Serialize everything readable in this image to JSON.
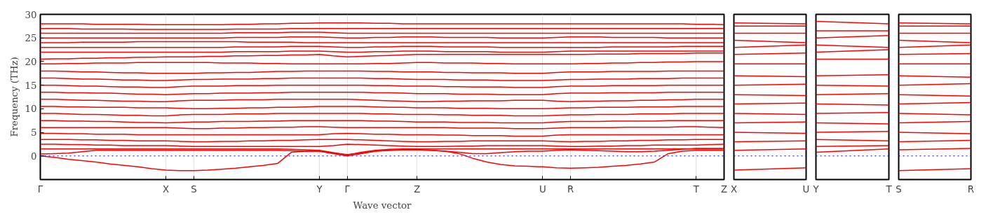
{
  "chart_data": [
    {
      "type": "line",
      "ylabel": "Frequency (THz)",
      "xlabel": "Wave vector",
      "ylim": [
        -5,
        30
      ],
      "yticks": [
        0,
        5,
        10,
        15,
        20,
        25,
        30
      ],
      "grid": "x",
      "categories": [
        "Γ",
        null,
        null,
        null,
        null,
        null,
        null,
        null,
        null,
        "X",
        null,
        "S",
        null,
        null,
        null,
        null,
        null,
        null,
        null,
        null,
        "Y",
        null,
        "Γ",
        null,
        null,
        null,
        null,
        "Z",
        null,
        null,
        null,
        null,
        null,
        null,
        null,
        null,
        "U",
        null,
        "R",
        null,
        null,
        null,
        null,
        null,
        null,
        null,
        null,
        "T",
        null,
        "Z"
      ],
      "ref_lines": [
        {
          "axis": "y",
          "value": 0,
          "color": "#0000ff",
          "line_style": "dotted"
        }
      ],
      "series": [
        {
          "color": "#ff0000",
          "values": [
            0,
            -0.3,
            -0.7,
            -1.0,
            -1.3,
            -1.7,
            -2.0,
            -2.3,
            -2.7,
            -3.0,
            -3.1,
            -3.1,
            -3.0,
            -2.8,
            -2.6,
            -2.3,
            -2.0,
            -1.6,
            0.8,
            1.0,
            1.0,
            0.5,
            0,
            0.5,
            1.0,
            1.2,
            1.3,
            1.3,
            1.2,
            1.0,
            0.5,
            -0.5,
            -1.3,
            -1.8,
            -2.1,
            -2.2,
            -2.3,
            -2.5,
            -2.6,
            -2.5,
            -2.4,
            -2.2,
            -2.0,
            -1.7,
            -1.3,
            0.5,
            1.0,
            1.2,
            1.2,
            1.2
          ]
        },
        {
          "color": "#ff0000",
          "values": [
            0.4,
            0.5,
            0.6,
            0.9,
            1.2,
            1.2,
            1.2,
            1.2,
            1.2,
            1.2,
            1.2,
            1.2,
            1.2,
            1.2,
            1.2,
            1.2,
            1.2,
            1.2,
            1.1,
            1.0,
            1.0,
            0.6,
            0.3,
            0.6,
            1.0,
            1.2,
            1.3,
            1.3,
            1.2,
            1.0,
            0.8,
            0.5,
            0.5,
            0.7,
            0.9,
            1.0,
            1.0,
            1.2,
            1.3,
            1.2,
            1.1,
            1.0,
            0.9,
            0.9,
            1.0,
            1.2,
            1.4,
            1.6,
            1.6,
            1.6
          ]
        },
        {
          "color": "#ff0000",
          "values": [
            1.5,
            1.5,
            1.5,
            1.5,
            1.5,
            1.5,
            1.5,
            1.5,
            1.5,
            1.5,
            1.5,
            1.5,
            1.5,
            1.5,
            1.5,
            1.5,
            1.5,
            1.5,
            1.4,
            1.3,
            1.2,
            0.7,
            0.2,
            0.8,
            1.2,
            1.4,
            1.5,
            1.5,
            1.5,
            1.5,
            1.5,
            1.5,
            1.5,
            1.5,
            1.5,
            1.5,
            1.5,
            1.5,
            1.5,
            1.5,
            1.5,
            1.5,
            1.5,
            1.5,
            1.5,
            1.5,
            1.5,
            1.5,
            1.5,
            1.5
          ]
        },
        {
          "color": "#ff0000",
          "values": [
            2.5,
            2.5,
            2.4,
            2.4,
            2.3,
            2.3,
            2.2,
            2.2,
            2.2,
            2.2,
            2.1,
            2.0,
            2.0,
            2.0,
            2.0,
            2.0,
            2.0,
            2.0,
            2.0,
            2.0,
            2.0,
            2.2,
            2.5,
            2.4,
            2.3,
            2.2,
            2.1,
            2.0,
            2.0,
            2.0,
            2.1,
            2.1,
            2.2,
            2.2,
            2.2,
            2.2,
            2.2,
            2.1,
            2.0,
            2.0,
            2.1,
            2.1,
            2.2,
            2.2,
            2.3,
            2.3,
            2.3,
            2.3,
            2.4,
            2.5
          ]
        },
        {
          "color": "#ff0000",
          "values": [
            3.5,
            3.5,
            3.5,
            3.4,
            3.4,
            3.3,
            3.3,
            3.2,
            3.2,
            3.2,
            3.1,
            3.0,
            3.0,
            3.1,
            3.1,
            3.2,
            3.2,
            3.3,
            3.3,
            3.4,
            3.5,
            3.5,
            3.5,
            3.4,
            3.3,
            3.2,
            3.1,
            3.0,
            3.0,
            3.1,
            3.1,
            3.2,
            3.2,
            3.2,
            3.2,
            3.2,
            3.2,
            3.1,
            3.0,
            3.1,
            3.1,
            3.2,
            3.2,
            3.3,
            3.3,
            3.4,
            3.4,
            3.5,
            3.5,
            3.5
          ]
        },
        {
          "color": "#ff0000",
          "values": [
            4.8,
            4.8,
            4.7,
            4.7,
            4.6,
            4.6,
            4.6,
            4.5,
            4.5,
            4.5,
            4.5,
            4.5,
            4.5,
            4.5,
            4.5,
            4.5,
            4.5,
            4.5,
            4.5,
            4.5,
            4.5,
            4.7,
            4.8,
            4.7,
            4.6,
            4.6,
            4.5,
            4.5,
            4.5,
            4.4,
            4.4,
            4.3,
            4.3,
            4.3,
            4.2,
            4.2,
            4.2,
            4.4,
            4.5,
            4.5,
            4.5,
            4.5,
            4.5,
            4.5,
            4.5,
            4.5,
            4.5,
            4.5,
            4.5,
            4.5
          ]
        },
        {
          "color": "#ff0000",
          "values": [
            6.0,
            6.0,
            6.0,
            6.0,
            6.0,
            6.0,
            6.0,
            6.0,
            6.0,
            6.0,
            5.9,
            5.8,
            5.8,
            5.9,
            5.9,
            6.0,
            6.0,
            6.1,
            6.1,
            6.2,
            6.2,
            6.1,
            6.0,
            6.0,
            6.0,
            6.0,
            6.0,
            6.0,
            6.0,
            6.0,
            5.9,
            5.9,
            5.9,
            5.9,
            5.8,
            5.8,
            5.8,
            5.9,
            6.0,
            6.0,
            6.0,
            6.0,
            6.1,
            6.1,
            6.1,
            6.1,
            6.2,
            6.2,
            6.1,
            6.0
          ]
        },
        {
          "color": "#ff0000",
          "values": [
            7.5,
            7.5,
            7.4,
            7.4,
            7.3,
            7.3,
            7.2,
            7.1,
            7.1,
            7.0,
            7.1,
            7.2,
            7.2,
            7.3,
            7.3,
            7.3,
            7.4,
            7.4,
            7.5,
            7.5,
            7.5,
            7.5,
            7.5,
            7.5,
            7.4,
            7.4,
            7.3,
            7.2,
            7.2,
            7.2,
            7.1,
            7.1,
            7.1,
            7.0,
            7.0,
            7.0,
            7.0,
            7.2,
            7.3,
            7.3,
            7.3,
            7.4,
            7.4,
            7.4,
            7.4,
            7.5,
            7.5,
            7.5,
            7.5,
            7.5
          ]
        },
        {
          "color": "#ff0000",
          "values": [
            9.0,
            9.0,
            8.9,
            8.8,
            8.8,
            8.7,
            8.6,
            8.6,
            8.5,
            8.5,
            8.7,
            8.8,
            8.8,
            8.8,
            8.9,
            8.9,
            8.9,
            9.0,
            9.0,
            9.0,
            9.0,
            9.0,
            9.0,
            9.0,
            8.9,
            8.9,
            8.8,
            8.8,
            8.8,
            8.7,
            8.7,
            8.6,
            8.6,
            8.6,
            8.5,
            8.5,
            8.5,
            8.6,
            8.7,
            8.7,
            8.8,
            8.8,
            8.8,
            8.9,
            8.9,
            8.9,
            9.0,
            9.0,
            9.0,
            9.0
          ]
        },
        {
          "color": "#ff0000",
          "values": [
            10.5,
            10.5,
            10.4,
            10.4,
            10.3,
            10.3,
            10.3,
            10.2,
            10.2,
            10.2,
            10.1,
            10.0,
            10.0,
            10.1,
            10.1,
            10.2,
            10.2,
            10.3,
            10.3,
            10.4,
            10.5,
            10.5,
            10.5,
            10.5,
            10.4,
            10.3,
            10.3,
            10.2,
            10.2,
            10.2,
            10.1,
            10.1,
            10.1,
            10.0,
            10.0,
            10.0,
            10.0,
            10.1,
            10.2,
            10.2,
            10.3,
            10.3,
            10.3,
            10.4,
            10.4,
            10.4,
            10.5,
            10.5,
            10.5,
            10.5
          ]
        },
        {
          "color": "#ff0000",
          "values": [
            12.0,
            12.0,
            11.9,
            11.8,
            11.8,
            11.7,
            11.6,
            11.6,
            11.5,
            11.5,
            11.7,
            11.8,
            11.8,
            11.8,
            11.9,
            11.9,
            11.9,
            12.0,
            12.0,
            12.0,
            12.0,
            12.0,
            12.0,
            11.9,
            11.8,
            11.7,
            11.6,
            11.5,
            11.5,
            11.6,
            11.6,
            11.7,
            11.7,
            11.7,
            11.8,
            11.8,
            11.8,
            11.6,
            11.5,
            11.6,
            11.6,
            11.7,
            11.7,
            11.8,
            11.8,
            11.9,
            11.9,
            12.0,
            12.0,
            12.0
          ]
        },
        {
          "color": "#ff0000",
          "values": [
            13.5,
            13.5,
            13.4,
            13.4,
            13.3,
            13.3,
            13.2,
            13.1,
            13.1,
            13.0,
            13.1,
            13.2,
            13.2,
            13.3,
            13.3,
            13.3,
            13.4,
            13.4,
            13.5,
            13.5,
            13.5,
            13.5,
            13.5,
            13.5,
            13.4,
            13.4,
            13.3,
            13.2,
            13.2,
            13.2,
            13.1,
            13.1,
            13.1,
            13.0,
            13.0,
            13.0,
            13.0,
            13.2,
            13.3,
            13.3,
            13.3,
            13.4,
            13.4,
            13.4,
            13.4,
            13.5,
            13.5,
            13.5,
            13.5,
            13.5
          ]
        },
        {
          "color": "#ff0000",
          "values": [
            15.0,
            15.0,
            14.9,
            14.8,
            14.8,
            14.7,
            14.6,
            14.6,
            14.5,
            14.5,
            14.7,
            14.8,
            14.8,
            14.8,
            14.9,
            14.9,
            14.9,
            15.0,
            15.0,
            15.0,
            15.0,
            15.0,
            15.0,
            15.0,
            14.9,
            14.9,
            14.8,
            14.8,
            14.8,
            14.7,
            14.7,
            14.6,
            14.6,
            14.6,
            14.5,
            14.5,
            14.5,
            14.7,
            14.8,
            14.8,
            14.8,
            14.9,
            14.9,
            14.9,
            14.9,
            15.0,
            15.0,
            15.0,
            15.0,
            15.0
          ]
        },
        {
          "color": "#ff0000",
          "values": [
            16.5,
            16.5,
            16.4,
            16.3,
            16.3,
            16.2,
            16.1,
            16.1,
            16.0,
            16.0,
            16.1,
            16.2,
            16.2,
            16.3,
            16.3,
            16.3,
            16.4,
            16.4,
            16.5,
            16.5,
            16.5,
            16.5,
            16.5,
            16.5,
            16.4,
            16.4,
            16.3,
            16.2,
            16.2,
            16.2,
            16.1,
            16.1,
            16.1,
            16.0,
            16.0,
            16.0,
            16.0,
            16.1,
            16.2,
            16.2,
            16.3,
            16.3,
            16.3,
            16.4,
            16.4,
            16.4,
            16.5,
            16.5,
            16.5,
            16.5
          ]
        },
        {
          "color": "#ff0000",
          "values": [
            18.0,
            18.0,
            17.9,
            17.8,
            17.8,
            17.7,
            17.6,
            17.6,
            17.5,
            17.5,
            17.5,
            17.5,
            17.6,
            17.6,
            17.7,
            17.7,
            17.8,
            17.9,
            17.9,
            18.0,
            18.0,
            18.0,
            18.0,
            18.0,
            17.9,
            17.9,
            17.8,
            17.8,
            17.8,
            17.7,
            17.7,
            17.6,
            17.6,
            17.6,
            17.5,
            17.5,
            17.5,
            17.7,
            17.8,
            17.8,
            17.8,
            17.9,
            17.9,
            17.9,
            17.9,
            18.0,
            18.0,
            18.0,
            18.0,
            18.0
          ]
        },
        {
          "color": "#ff0000",
          "values": [
            19.5,
            19.5,
            19.6,
            19.6,
            19.7,
            19.7,
            19.7,
            19.8,
            19.8,
            19.8,
            19.8,
            19.8,
            19.8,
            19.7,
            19.7,
            19.7,
            19.6,
            19.6,
            19.5,
            19.5,
            19.5,
            19.5,
            19.5,
            19.5,
            19.6,
            19.6,
            19.7,
            19.8,
            19.8,
            19.7,
            19.7,
            19.7,
            19.6,
            19.6,
            19.5,
            19.5,
            19.5,
            19.5,
            19.5,
            19.6,
            19.6,
            19.7,
            19.7,
            19.8,
            19.8,
            19.9,
            19.9,
            20.0,
            20.0,
            20.0
          ]
        },
        {
          "color": "#ff0000",
          "values": [
            20.5,
            20.6,
            20.6,
            20.7,
            20.7,
            20.8,
            20.8,
            20.9,
            20.9,
            21.0,
            21.0,
            21.0,
            21.1,
            21.1,
            21.2,
            21.2,
            21.3,
            21.3,
            21.4,
            21.4,
            21.5,
            21.2,
            21.0,
            21.1,
            21.2,
            21.3,
            21.4,
            21.5,
            21.5,
            21.5,
            21.5,
            21.5,
            21.5,
            21.5,
            21.5,
            21.5,
            21.5,
            21.5,
            21.5,
            21.5,
            21.6,
            21.6,
            21.6,
            21.7,
            21.7,
            21.7,
            21.7,
            21.8,
            21.8,
            21.8
          ]
        },
        {
          "color": "#ff0000",
          "values": [
            22.0,
            22.0,
            22.0,
            22.0,
            22.0,
            22.0,
            22.0,
            22.0,
            22.0,
            22.0,
            22.0,
            22.0,
            22.0,
            22.0,
            22.1,
            22.1,
            22.1,
            22.1,
            22.2,
            22.2,
            22.2,
            22.1,
            22.0,
            22.0,
            22.1,
            22.1,
            22.2,
            22.2,
            22.2,
            22.1,
            22.1,
            22.1,
            22.1,
            22.0,
            22.0,
            22.0,
            22.0,
            22.1,
            22.2,
            22.2,
            22.2,
            22.2,
            22.2,
            22.2,
            22.2,
            22.2,
            22.2,
            22.2,
            22.2,
            22.2
          ]
        },
        {
          "color": "#ff0000",
          "values": [
            23.0,
            23.0,
            23.0,
            23.0,
            23.0,
            23.0,
            23.0,
            23.0,
            23.0,
            23.0,
            23.0,
            23.0,
            23.0,
            23.0,
            23.1,
            23.1,
            23.1,
            23.1,
            23.2,
            23.2,
            23.2,
            23.1,
            23.0,
            23.0,
            23.1,
            23.1,
            23.2,
            23.2,
            23.2,
            23.1,
            23.1,
            23.1,
            23.1,
            23.0,
            23.0,
            23.0,
            23.0,
            23.0,
            23.0,
            23.0,
            23.0,
            23.1,
            23.1,
            23.1,
            23.1,
            23.1,
            23.2,
            23.2,
            23.2,
            23.2
          ]
        },
        {
          "color": "#ff0000",
          "values": [
            24.0,
            24.0,
            24.0,
            24.1,
            24.1,
            24.1,
            24.1,
            24.2,
            24.2,
            24.2,
            24.2,
            24.2,
            24.2,
            24.2,
            24.2,
            24.1,
            24.1,
            24.1,
            24.1,
            24.0,
            24.0,
            24.0,
            24.0,
            24.0,
            24.0,
            24.0,
            24.0,
            24.0,
            24.0,
            24.0,
            24.0,
            24.0,
            24.0,
            24.0,
            24.0,
            24.0,
            24.0,
            24.0,
            24.0,
            24.0,
            24.0,
            24.0,
            24.0,
            24.0,
            24.0,
            24.0,
            24.0,
            24.0,
            24.0,
            24.0
          ]
        },
        {
          "color": "#ff0000",
          "values": [
            25.0,
            25.0,
            25.0,
            25.0,
            25.0,
            25.0,
            25.0,
            25.0,
            25.0,
            25.0,
            25.0,
            25.0,
            25.0,
            25.0,
            25.1,
            25.1,
            25.1,
            25.1,
            25.2,
            25.2,
            25.2,
            25.1,
            25.0,
            25.0,
            25.1,
            25.1,
            25.2,
            25.2,
            25.2,
            25.1,
            25.1,
            25.1,
            25.1,
            25.0,
            25.0,
            25.0,
            25.0,
            25.1,
            25.2,
            25.2,
            25.2,
            25.1,
            25.1,
            25.1,
            25.1,
            25.0,
            25.0,
            25.0,
            25.0,
            25.0
          ]
        },
        {
          "color": "#ff0000",
          "values": [
            26.0,
            26.0,
            26.0,
            26.0,
            26.0,
            26.0,
            26.0,
            26.0,
            26.0,
            26.0,
            26.0,
            26.0,
            26.0,
            26.0,
            26.1,
            26.1,
            26.1,
            26.1,
            26.2,
            26.2,
            26.2,
            26.1,
            26.0,
            26.0,
            26.0,
            26.0,
            26.0,
            26.0,
            26.0,
            26.0,
            26.0,
            26.0,
            26.0,
            26.0,
            26.0,
            26.0,
            26.0,
            26.0,
            26.0,
            26.0,
            26.0,
            26.0,
            26.0,
            26.0,
            26.0,
            26.0,
            26.0,
            26.0,
            26.0,
            26.0
          ]
        },
        {
          "color": "#ff0000",
          "values": [
            27.0,
            27.0,
            27.0,
            26.9,
            26.9,
            26.9,
            26.9,
            26.8,
            26.8,
            26.8,
            26.8,
            26.8,
            26.8,
            26.8,
            26.9,
            26.9,
            26.9,
            26.9,
            27.0,
            27.0,
            27.0,
            27.0,
            27.0,
            27.0,
            27.0,
            27.0,
            27.0,
            27.0,
            27.0,
            27.0,
            27.0,
            27.0,
            27.0,
            27.0,
            27.0,
            27.0,
            27.0,
            27.0,
            27.0,
            27.0,
            27.0,
            27.0,
            27.0,
            27.0,
            27.0,
            27.0,
            27.0,
            27.0,
            27.0,
            27.0
          ]
        },
        {
          "color": "#ff0000",
          "values": [
            28.0,
            28.0,
            28.0,
            28.0,
            27.9,
            27.9,
            27.9,
            27.9,
            27.8,
            27.8,
            27.8,
            27.8,
            27.8,
            27.8,
            27.9,
            27.9,
            28.0,
            28.0,
            28.1,
            28.1,
            28.2,
            28.2,
            28.2,
            28.2,
            28.1,
            28.1,
            28.0,
            28.0,
            28.0,
            28.0,
            28.0,
            28.0,
            28.0,
            28.0,
            28.0,
            28.0,
            28.0,
            28.0,
            28.0,
            28.0,
            28.0,
            28.0,
            28.0,
            28.0,
            28.0,
            28.0,
            28.0,
            27.9,
            27.9,
            27.8
          ]
        }
      ]
    },
    {
      "type": "line",
      "ylim": [
        -5,
        30
      ],
      "yticks": [
        0,
        5,
        10,
        15,
        20,
        25,
        30
      ],
      "tick_labels": "x",
      "categories": [
        "X",
        "U"
      ],
      "ref_lines": [
        {
          "axis": "y",
          "value": 0,
          "color": "#0000ff",
          "line_style": "dotted"
        }
      ],
      "series": [
        {
          "color": "#ff0000",
          "values": [
            -3.0,
            -2.5
          ]
        },
        {
          "color": "#ff0000",
          "values": [
            1.2,
            1.5
          ]
        },
        {
          "color": "#ff0000",
          "values": [
            3.0,
            3.2
          ]
        },
        {
          "color": "#ff0000",
          "values": [
            5.0,
            4.8
          ]
        },
        {
          "color": "#ff0000",
          "values": [
            7.0,
            7.2
          ]
        },
        {
          "color": "#ff0000",
          "values": [
            9.0,
            8.8
          ]
        },
        {
          "color": "#ff0000",
          "values": [
            11.0,
            11.2
          ]
        },
        {
          "color": "#ff0000",
          "values": [
            13.0,
            12.8
          ]
        },
        {
          "color": "#ff0000",
          "values": [
            15.0,
            15.2
          ]
        },
        {
          "color": "#ff0000",
          "values": [
            17.0,
            16.8
          ]
        },
        {
          "color": "#ff0000",
          "values": [
            19.5,
            19.5
          ]
        },
        {
          "color": "#ff0000",
          "values": [
            21.5,
            21.8
          ]
        },
        {
          "color": "#ff0000",
          "values": [
            23.0,
            23.5
          ]
        },
        {
          "color": "#ff0000",
          "values": [
            24.5,
            24.0
          ]
        },
        {
          "color": "#ff0000",
          "values": [
            26.0,
            26.0
          ]
        },
        {
          "color": "#ff0000",
          "values": [
            27.5,
            27.5
          ]
        },
        {
          "color": "#ff0000",
          "values": [
            28.2,
            28.0
          ]
        }
      ]
    },
    {
      "type": "line",
      "ylim": [
        -5,
        30
      ],
      "yticks": [
        0,
        5,
        10,
        15,
        20,
        25,
        30
      ],
      "tick_labels": "x",
      "categories": [
        "Y",
        "T"
      ],
      "ref_lines": [
        {
          "axis": "y",
          "value": 0,
          "color": "#0000ff",
          "line_style": "dotted"
        }
      ],
      "series": [
        {
          "color": "#ff0000",
          "values": [
            0.8,
            1.5
          ]
        },
        {
          "color": "#ff0000",
          "values": [
            2.0,
            2.2
          ]
        },
        {
          "color": "#ff0000",
          "values": [
            3.5,
            3.2
          ]
        },
        {
          "color": "#ff0000",
          "values": [
            5.0,
            5.2
          ]
        },
        {
          "color": "#ff0000",
          "values": [
            7.0,
            6.8
          ]
        },
        {
          "color": "#ff0000",
          "values": [
            9.0,
            9.2
          ]
        },
        {
          "color": "#ff0000",
          "values": [
            11.0,
            10.8
          ]
        },
        {
          "color": "#ff0000",
          "values": [
            13.0,
            13.2
          ]
        },
        {
          "color": "#ff0000",
          "values": [
            15.0,
            14.8
          ]
        },
        {
          "color": "#ff0000",
          "values": [
            17.0,
            17.2
          ]
        },
        {
          "color": "#ff0000",
          "values": [
            20.5,
            20.5
          ]
        },
        {
          "color": "#ff0000",
          "values": [
            22.0,
            22.5
          ]
        },
        {
          "color": "#ff0000",
          "values": [
            23.5,
            23.0
          ]
        },
        {
          "color": "#ff0000",
          "values": [
            25.0,
            25.5
          ]
        },
        {
          "color": "#ff0000",
          "values": [
            26.5,
            26.5
          ]
        },
        {
          "color": "#ff0000",
          "values": [
            28.5,
            28.0
          ]
        }
      ]
    },
    {
      "type": "line",
      "ylim": [
        -5,
        30
      ],
      "yticks": [
        0,
        5,
        10,
        15,
        20,
        25,
        30
      ],
      "tick_labels": "x",
      "categories": [
        "S",
        "R"
      ],
      "ref_lines": [
        {
          "axis": "y",
          "value": 0,
          "color": "#0000ff",
          "line_style": "dotted"
        }
      ],
      "series": [
        {
          "color": "#ff0000",
          "values": [
            -3.1,
            -2.7
          ]
        },
        {
          "color": "#ff0000",
          "values": [
            1.3,
            1.6
          ]
        },
        {
          "color": "#ff0000",
          "values": [
            3.0,
            3.3
          ]
        },
        {
          "color": "#ff0000",
          "values": [
            5.0,
            4.7
          ]
        },
        {
          "color": "#ff0000",
          "values": [
            7.0,
            7.3
          ]
        },
        {
          "color": "#ff0000",
          "values": [
            9.0,
            8.7
          ]
        },
        {
          "color": "#ff0000",
          "values": [
            11.0,
            11.3
          ]
        },
        {
          "color": "#ff0000",
          "values": [
            13.0,
            12.7
          ]
        },
        {
          "color": "#ff0000",
          "values": [
            15.0,
            15.3
          ]
        },
        {
          "color": "#ff0000",
          "values": [
            17.0,
            16.7
          ]
        },
        {
          "color": "#ff0000",
          "values": [
            19.5,
            19.5
          ]
        },
        {
          "color": "#ff0000",
          "values": [
            21.5,
            21.7
          ]
        },
        {
          "color": "#ff0000",
          "values": [
            23.0,
            23.5
          ]
        },
        {
          "color": "#ff0000",
          "values": [
            24.5,
            24.0
          ]
        },
        {
          "color": "#ff0000",
          "values": [
            26.0,
            26.0
          ]
        },
        {
          "color": "#ff0000",
          "values": [
            27.5,
            27.5
          ]
        },
        {
          "color": "#ff0000",
          "values": [
            28.2,
            28.0
          ]
        }
      ]
    }
  ]
}
